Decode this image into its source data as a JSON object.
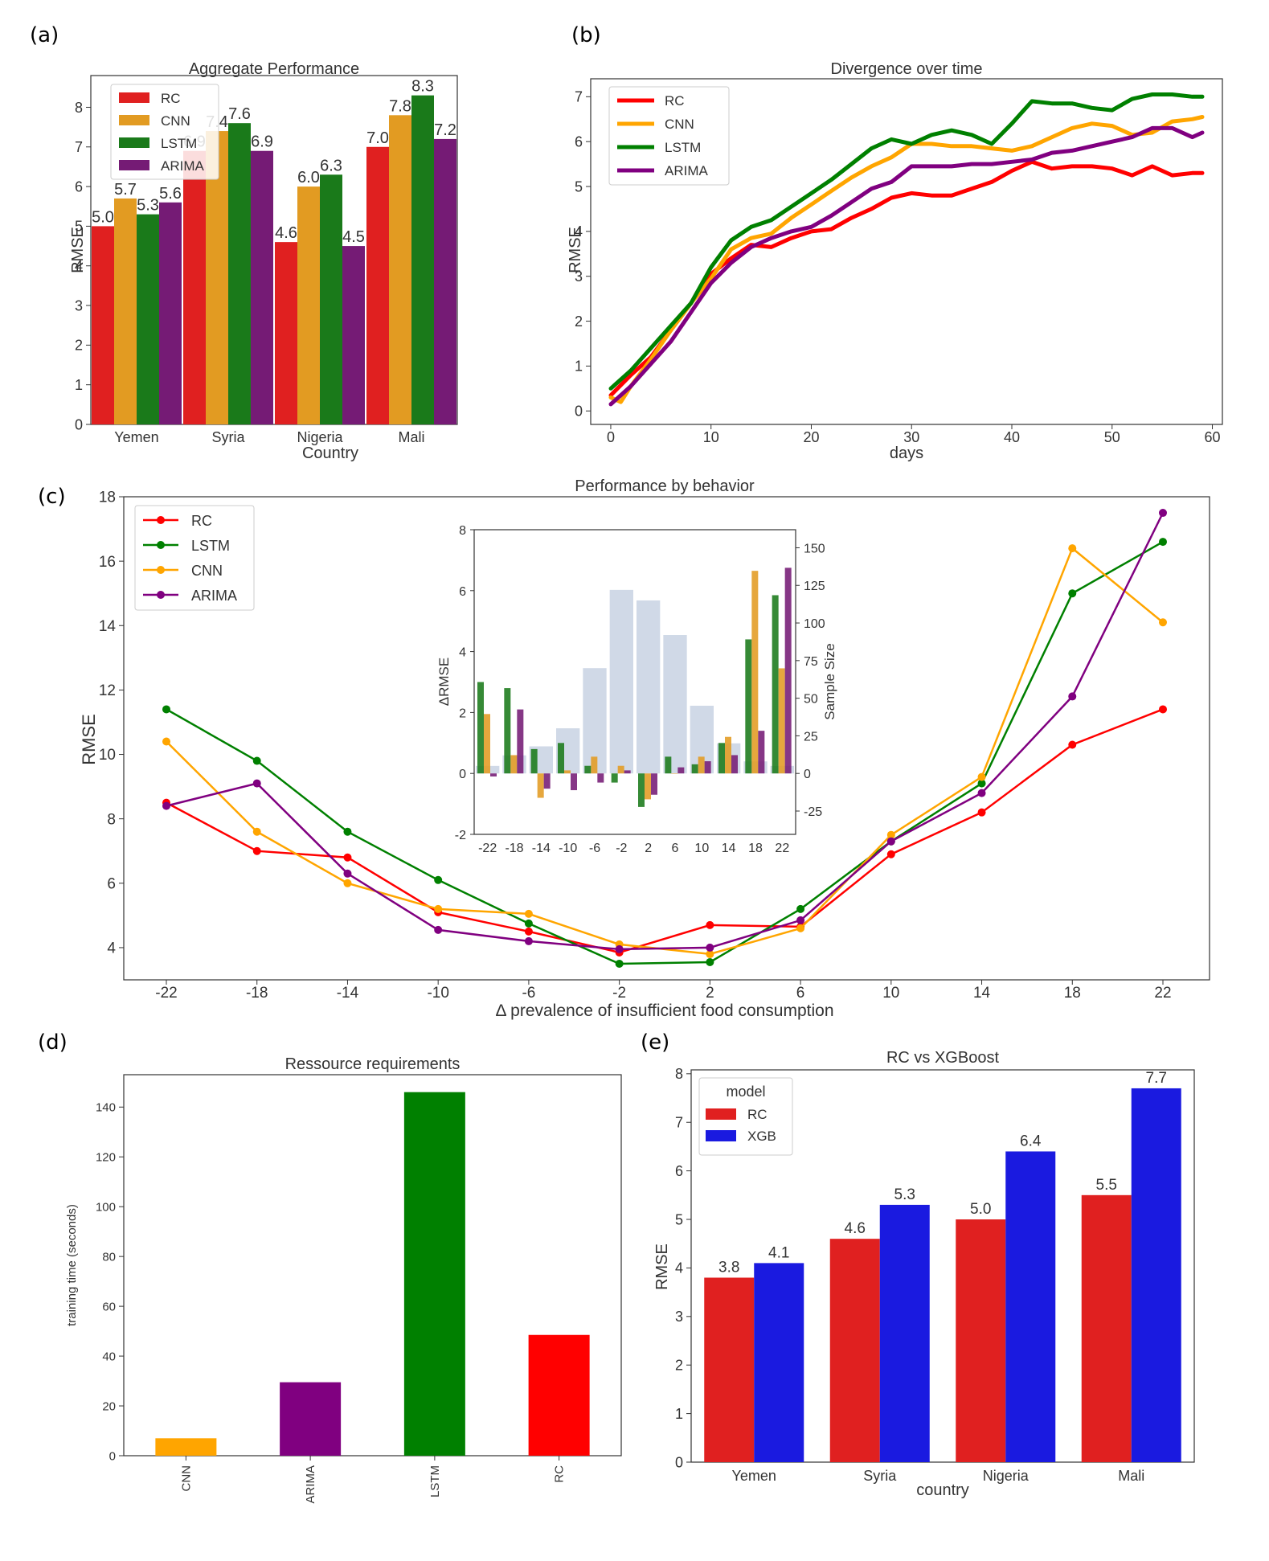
{
  "colors": {
    "RC": "#ff0000",
    "CNN": "#ffa500",
    "LSTM": "#008000",
    "ARIMA": "#800080",
    "RC_bar": "#e02020",
    "CNN_bar": "#e29b22",
    "LSTM_bar": "#1a7a1a",
    "ARIMA_bar": "#751b75",
    "XGB": "#1a1ae0",
    "sample": "#cbd5e4"
  },
  "chart_data": [
    {
      "panel": "(a)",
      "type": "bar",
      "title": "Aggregate Performance",
      "xlabel": "Country",
      "ylabel": "RMSE",
      "categories": [
        "Yemen",
        "Syria",
        "Nigeria",
        "Mali"
      ],
      "series": [
        {
          "name": "RC",
          "values": [
            5.0,
            6.9,
            4.6,
            7.0
          ],
          "labels": [
            "5.0",
            "6.9",
            "4.6",
            "7.0"
          ]
        },
        {
          "name": "CNN",
          "values": [
            5.7,
            7.4,
            6.0,
            7.8
          ],
          "labels": [
            "5.7",
            "7.4",
            "6.0",
            "7.8"
          ]
        },
        {
          "name": "LSTM",
          "values": [
            5.3,
            7.6,
            6.3,
            8.3
          ],
          "labels": [
            "5.3",
            "7.6",
            "6.3",
            "8.3"
          ]
        },
        {
          "name": "ARIMA",
          "values": [
            5.6,
            6.9,
            4.5,
            7.2
          ],
          "labels": [
            "5.6",
            "6.9",
            "4.5",
            "7.2"
          ]
        }
      ],
      "ylim": [
        0,
        8.8
      ],
      "yticks": [
        0,
        1,
        2,
        3,
        4,
        5,
        6,
        7,
        8
      ],
      "legend": "top-left"
    },
    {
      "panel": "(b)",
      "type": "line",
      "title": "Divergence over time",
      "xlabel": "days",
      "ylabel": "RMSE",
      "xlim": [
        -2,
        61
      ],
      "ylim": [
        -0.3,
        7.4
      ],
      "xticks": [
        0,
        10,
        20,
        30,
        40,
        50,
        60
      ],
      "yticks": [
        0,
        1,
        2,
        3,
        4,
        5,
        6,
        7
      ],
      "series": [
        {
          "name": "RC",
          "points": [
            [
              0,
              0.35
            ],
            [
              2,
              0.8
            ],
            [
              4,
              1.2
            ],
            [
              6,
              1.8
            ],
            [
              8,
              2.4
            ],
            [
              10,
              3.05
            ],
            [
              12,
              3.4
            ],
            [
              14,
              3.7
            ],
            [
              16,
              3.65
            ],
            [
              18,
              3.85
            ],
            [
              20,
              4.0
            ],
            [
              22,
              4.05
            ],
            [
              24,
              4.3
            ],
            [
              26,
              4.5
            ],
            [
              28,
              4.75
            ],
            [
              30,
              4.85
            ],
            [
              32,
              4.8
            ],
            [
              34,
              4.8
            ],
            [
              36,
              4.95
            ],
            [
              38,
              5.1
            ],
            [
              40,
              5.35
            ],
            [
              42,
              5.55
            ],
            [
              44,
              5.4
            ],
            [
              46,
              5.45
            ],
            [
              48,
              5.45
            ],
            [
              50,
              5.4
            ],
            [
              52,
              5.25
            ],
            [
              54,
              5.45
            ],
            [
              56,
              5.25
            ],
            [
              58,
              5.3
            ],
            [
              59,
              5.3
            ]
          ]
        },
        {
          "name": "CNN",
          "points": [
            [
              0,
              0.3
            ],
            [
              1,
              0.2
            ],
            [
              2,
              0.55
            ],
            [
              4,
              1.15
            ],
            [
              6,
              1.8
            ],
            [
              8,
              2.4
            ],
            [
              10,
              2.95
            ],
            [
              12,
              3.6
            ],
            [
              14,
              3.85
            ],
            [
              16,
              3.95
            ],
            [
              18,
              4.3
            ],
            [
              20,
              4.6
            ],
            [
              22,
              4.9
            ],
            [
              24,
              5.2
            ],
            [
              26,
              5.45
            ],
            [
              28,
              5.65
            ],
            [
              30,
              5.95
            ],
            [
              32,
              5.95
            ],
            [
              34,
              5.9
            ],
            [
              36,
              5.9
            ],
            [
              38,
              5.85
            ],
            [
              40,
              5.8
            ],
            [
              42,
              5.9
            ],
            [
              44,
              6.1
            ],
            [
              46,
              6.3
            ],
            [
              48,
              6.4
            ],
            [
              50,
              6.35
            ],
            [
              52,
              6.15
            ],
            [
              54,
              6.2
            ],
            [
              56,
              6.45
            ],
            [
              58,
              6.5
            ],
            [
              59,
              6.55
            ]
          ]
        },
        {
          "name": "LSTM",
          "points": [
            [
              0,
              0.5
            ],
            [
              2,
              0.9
            ],
            [
              4,
              1.4
            ],
            [
              6,
              1.9
            ],
            [
              8,
              2.4
            ],
            [
              10,
              3.2
            ],
            [
              12,
              3.8
            ],
            [
              14,
              4.1
            ],
            [
              16,
              4.25
            ],
            [
              18,
              4.55
            ],
            [
              20,
              4.85
            ],
            [
              22,
              5.15
            ],
            [
              24,
              5.5
            ],
            [
              26,
              5.85
            ],
            [
              28,
              6.05
            ],
            [
              30,
              5.95
            ],
            [
              32,
              6.15
            ],
            [
              34,
              6.25
            ],
            [
              36,
              6.15
            ],
            [
              38,
              5.95
            ],
            [
              40,
              6.4
            ],
            [
              42,
              6.9
            ],
            [
              44,
              6.85
            ],
            [
              46,
              6.85
            ],
            [
              48,
              6.75
            ],
            [
              50,
              6.7
            ],
            [
              52,
              6.95
            ],
            [
              54,
              7.05
            ],
            [
              56,
              7.05
            ],
            [
              58,
              7.0
            ],
            [
              59,
              7.0
            ]
          ]
        },
        {
          "name": "ARIMA",
          "points": [
            [
              0,
              0.15
            ],
            [
              2,
              0.55
            ],
            [
              4,
              1.05
            ],
            [
              6,
              1.55
            ],
            [
              8,
              2.2
            ],
            [
              10,
              2.85
            ],
            [
              12,
              3.3
            ],
            [
              14,
              3.65
            ],
            [
              16,
              3.85
            ],
            [
              18,
              4.0
            ],
            [
              20,
              4.1
            ],
            [
              22,
              4.35
            ],
            [
              24,
              4.65
            ],
            [
              26,
              4.95
            ],
            [
              28,
              5.1
            ],
            [
              30,
              5.45
            ],
            [
              32,
              5.45
            ],
            [
              34,
              5.45
            ],
            [
              36,
              5.5
            ],
            [
              38,
              5.5
            ],
            [
              40,
              5.55
            ],
            [
              42,
              5.6
            ],
            [
              44,
              5.75
            ],
            [
              46,
              5.8
            ],
            [
              48,
              5.9
            ],
            [
              50,
              6.0
            ],
            [
              52,
              6.1
            ],
            [
              54,
              6.3
            ],
            [
              56,
              6.3
            ],
            [
              58,
              6.1
            ],
            [
              59,
              6.2
            ]
          ]
        }
      ],
      "legend": "top-left"
    },
    {
      "panel": "(c)",
      "type": "line",
      "title": "Performance by behavior",
      "xlabel": "Δ prevalence of insufficient food consumption",
      "ylabel": "RMSE",
      "categories": [
        "-22",
        "-18",
        "-14",
        "-10",
        "-6",
        "-2",
        "2",
        "6",
        "10",
        "14",
        "18",
        "22"
      ],
      "ylim": [
        3.0,
        18.0
      ],
      "yticks": [
        4,
        6,
        8,
        10,
        12,
        14,
        16,
        18
      ],
      "series": [
        {
          "name": "RC",
          "values": [
            8.5,
            7.0,
            6.8,
            5.1,
            4.5,
            3.85,
            4.7,
            4.65,
            6.9,
            8.2,
            10.3,
            11.4
          ]
        },
        {
          "name": "LSTM",
          "values": [
            11.4,
            9.8,
            7.6,
            6.1,
            4.75,
            3.5,
            3.55,
            5.2,
            7.3,
            9.1,
            15.0,
            16.6
          ]
        },
        {
          "name": "CNN",
          "values": [
            10.4,
            7.6,
            6.0,
            5.2,
            5.05,
            4.1,
            3.8,
            4.6,
            7.5,
            9.3,
            16.4,
            14.1
          ]
        },
        {
          "name": "ARIMA",
          "values": [
            8.4,
            9.1,
            6.3,
            4.55,
            4.2,
            3.95,
            4.0,
            4.85,
            7.3,
            8.8,
            11.8,
            17.5
          ]
        }
      ],
      "legend": "top-left"
    },
    {
      "panel": "(c) inset",
      "type": "bar",
      "xlabel": "",
      "ylabel": "ΔRMSE",
      "y2label": "Sample Size",
      "categories": [
        "-22",
        "-18",
        "-14",
        "-10",
        "-6",
        "-2",
        "2",
        "6",
        "10",
        "14",
        "18",
        "22"
      ],
      "ylim": [
        -2,
        8
      ],
      "yticks": [
        -2,
        0,
        2,
        4,
        6,
        8
      ],
      "y2lim": [
        -40.5,
        162
      ],
      "y2ticks": [
        -25,
        0,
        25,
        50,
        75,
        100,
        125,
        150
      ],
      "sample_size": [
        5,
        12,
        18,
        30,
        70,
        122,
        115,
        92,
        45,
        20,
        8,
        5
      ],
      "series": [
        {
          "name": "LSTM",
          "values": [
            3.0,
            2.8,
            0.8,
            1.0,
            0.25,
            -0.3,
            -1.1,
            0.55,
            0.3,
            1.0,
            4.4,
            5.85
          ]
        },
        {
          "name": "CNN",
          "values": [
            1.95,
            0.6,
            -0.8,
            0.1,
            0.55,
            0.25,
            -0.85,
            0.0,
            0.55,
            1.2,
            6.65,
            3.45
          ]
        },
        {
          "name": "ARIMA",
          "values": [
            -0.1,
            2.1,
            -0.5,
            -0.55,
            -0.3,
            0.1,
            -0.7,
            0.2,
            0.4,
            0.6,
            1.4,
            6.75
          ]
        }
      ]
    },
    {
      "panel": "(d)",
      "type": "bar",
      "title": "Ressource requirements",
      "xlabel": "",
      "ylabel": "training time (seconds)",
      "categories": [
        "CNN",
        "ARIMA",
        "LSTM",
        "RC"
      ],
      "values": [
        7,
        29.5,
        146,
        48.5
      ],
      "bar_colors": [
        "#ffa500",
        "#800080",
        "#008000",
        "#ff0000"
      ],
      "ylim": [
        0,
        153
      ],
      "yticks": [
        0,
        20,
        40,
        60,
        80,
        100,
        120,
        140
      ]
    },
    {
      "panel": "(e)",
      "type": "bar",
      "title": "RC vs XGBoost",
      "xlabel": "country",
      "ylabel": "RMSE",
      "categories": [
        "Yemen",
        "Syria",
        "Nigeria",
        "Mali"
      ],
      "legend_title": "model",
      "series": [
        {
          "name": "RC",
          "values": [
            3.8,
            4.6,
            5.0,
            5.5
          ],
          "labels": [
            "3.8",
            "4.6",
            "5.0",
            "5.5"
          ]
        },
        {
          "name": "XGB",
          "values": [
            4.1,
            5.3,
            6.4,
            7.7
          ],
          "labels": [
            "4.1",
            "5.3",
            "6.4",
            "7.7"
          ]
        }
      ],
      "ylim": [
        0,
        8.08
      ],
      "yticks": [
        0,
        1,
        2,
        3,
        4,
        5,
        6,
        7,
        8
      ],
      "legend": "top-left"
    }
  ]
}
